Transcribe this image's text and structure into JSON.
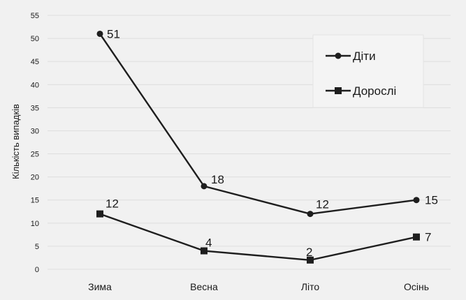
{
  "chart_data": {
    "type": "line",
    "title": "",
    "xlabel": "",
    "ylabel": "Кількість випадків",
    "categories": [
      "Зима",
      "Весна",
      "Літо",
      "Осінь"
    ],
    "ylim": [
      0,
      55
    ],
    "yticks": [
      0,
      5,
      10,
      15,
      20,
      25,
      30,
      35,
      40,
      45,
      50,
      55
    ],
    "grid": true,
    "legend_position": "top-right",
    "series": [
      {
        "name": "Діти",
        "marker": "circle",
        "values": [
          51,
          18,
          12,
          15
        ]
      },
      {
        "name": "Дорослі",
        "marker": "square",
        "values": [
          12,
          4,
          2,
          7
        ]
      }
    ],
    "colors": {
      "line": "#1e1e1e",
      "grid": "#dedede",
      "background": "#f1f1f1"
    }
  }
}
